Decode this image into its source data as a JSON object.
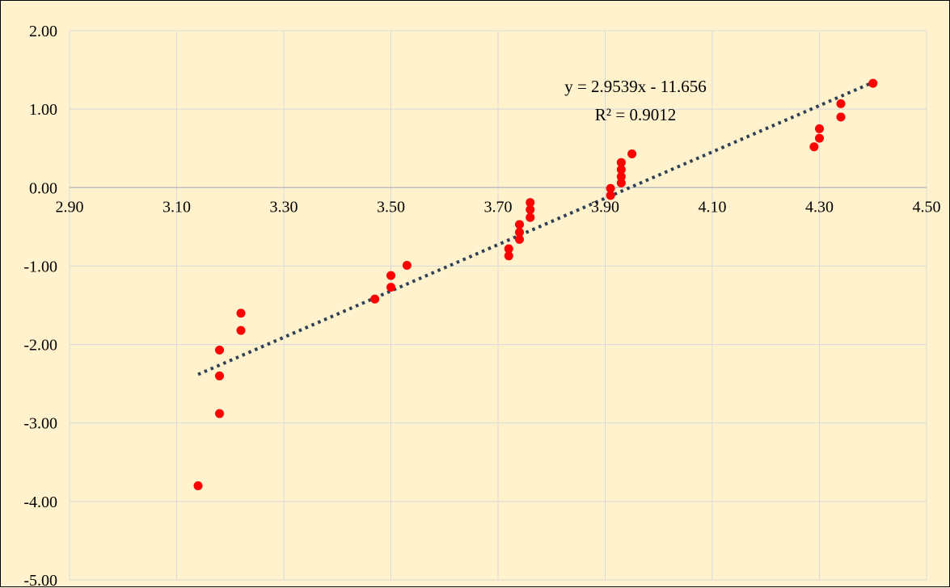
{
  "chart_data": {
    "type": "scatter",
    "title": "",
    "xlabel": "",
    "ylabel": "",
    "xlim": [
      2.9,
      4.5
    ],
    "ylim": [
      -5.0,
      2.0
    ],
    "x_ticks": [
      "2.90",
      "3.10",
      "3.30",
      "3.50",
      "3.70",
      "3.90",
      "4.10",
      "4.30",
      "4.50"
    ],
    "y_ticks": [
      "2.00",
      "1.00",
      "0.00",
      "-1.00",
      "-2.00",
      "-3.00",
      "-4.00",
      "-5.00"
    ],
    "grid": true,
    "legend": "none",
    "series": [
      {
        "marker_color": "#ff0000",
        "points": [
          [
            3.14,
            -3.8
          ],
          [
            3.18,
            -2.07
          ],
          [
            3.18,
            -2.4
          ],
          [
            3.18,
            -2.88
          ],
          [
            3.22,
            -1.6
          ],
          [
            3.22,
            -1.82
          ],
          [
            3.47,
            -1.42
          ],
          [
            3.5,
            -1.12
          ],
          [
            3.5,
            -1.27
          ],
          [
            3.53,
            -0.99
          ],
          [
            3.72,
            -0.78
          ],
          [
            3.72,
            -0.87
          ],
          [
            3.74,
            -0.47
          ],
          [
            3.74,
            -0.57
          ],
          [
            3.74,
            -0.66
          ],
          [
            3.76,
            -0.19
          ],
          [
            3.76,
            -0.28
          ],
          [
            3.76,
            -0.38
          ],
          [
            3.91,
            -0.01
          ],
          [
            3.91,
            -0.1
          ],
          [
            3.93,
            0.06
          ],
          [
            3.93,
            0.14
          ],
          [
            3.93,
            0.23
          ],
          [
            3.93,
            0.32
          ],
          [
            3.95,
            0.43
          ],
          [
            4.29,
            0.52
          ],
          [
            4.3,
            0.63
          ],
          [
            4.3,
            0.75
          ],
          [
            4.34,
            0.9
          ],
          [
            4.34,
            1.07
          ],
          [
            4.4,
            1.33
          ]
        ]
      }
    ],
    "trendline": {
      "type": "linear",
      "slope": 2.9539,
      "intercept": -11.656,
      "x_range": [
        3.14,
        4.4
      ],
      "color": "#2e4057",
      "style": "dotted",
      "equation_label": "y = 2.9539x - 11.656",
      "r2_label": "R² = 0.9012"
    },
    "colors": {
      "background": "#fff2cc",
      "gridline": "#d9d9d9",
      "axis": "#bfbfbf"
    }
  }
}
